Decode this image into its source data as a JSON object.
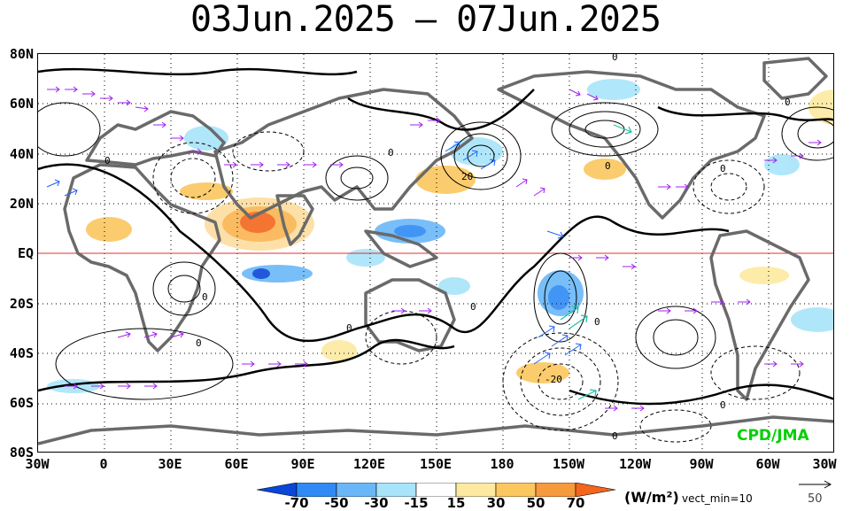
{
  "title": "03Jun.2025 – 07Jun.2025",
  "lat_labels": [
    "80N",
    "60N",
    "40N",
    "20N",
    "EQ",
    "20S",
    "40S",
    "60S",
    "80S"
  ],
  "lon_labels": [
    "30W",
    "0",
    "30E",
    "60E",
    "90E",
    "120E",
    "150E",
    "180",
    "150W",
    "120W",
    "90W",
    "60W",
    "30W"
  ],
  "contour_labels": [
    "0",
    "0",
    "0",
    "0",
    "0",
    "0",
    "0",
    "0",
    "0",
    "0",
    "20",
    "-20"
  ],
  "credit": "CPD/JMA",
  "colorbar": {
    "ticks": [
      "-70",
      "-50",
      "-30",
      "-15",
      "15",
      "30",
      "50",
      "70"
    ],
    "colors": [
      "#0a46d8",
      "#2f8af5",
      "#6ab7f8",
      "#a8e4fa",
      "#ffffff",
      "#fdeaa0",
      "#fbc75e",
      "#f79a3c",
      "#f3661c"
    ],
    "units": "(W/m²)",
    "vect_min": "vect_min=10",
    "ref_vector": "50"
  },
  "colors": {
    "equator": "#e03030",
    "land": "#6a6a6a",
    "vector": "#a020f0",
    "vector_strong": "#2060ff",
    "vector_strongest": "#20c0a0"
  }
}
